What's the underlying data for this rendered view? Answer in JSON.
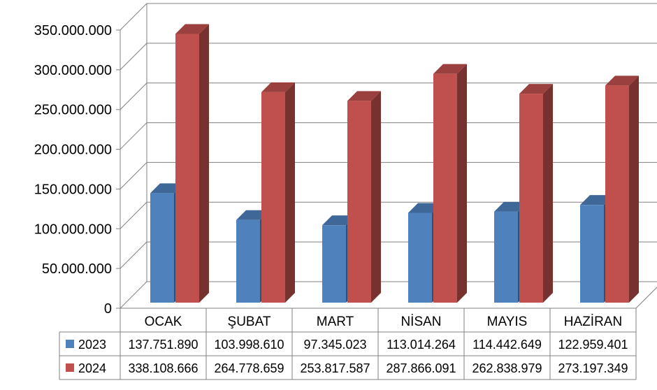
{
  "chart_data": {
    "type": "bar",
    "title": "",
    "xlabel": "",
    "ylabel": "",
    "categories": [
      "OCAK",
      "ŞUBAT",
      "MART",
      "NİSAN",
      "MAYIS",
      "HAZİRAN"
    ],
    "series": [
      {
        "name": "2023",
        "color": "#4F81BD",
        "values": [
          137751890,
          103998610,
          97345023,
          113014264,
          114442649,
          122959401
        ],
        "labels": [
          "137.751.890",
          "103.998.610",
          "97.345.023",
          "113.014.264",
          "114.442.649",
          "122.959.401"
        ]
      },
      {
        "name": "2024",
        "color": "#C0504D",
        "values": [
          338108666,
          264778659,
          253817587,
          287866091,
          262838979,
          273197349
        ],
        "labels": [
          "338.108.666",
          "264.778.659",
          "253.817.587",
          "287.866.091",
          "262.838.979",
          "273.197.349"
        ]
      }
    ],
    "ylim": [
      0,
      350000000
    ],
    "yticks": [
      0,
      50000000,
      100000000,
      150000000,
      200000000,
      250000000,
      300000000,
      350000000
    ],
    "ytick_labels": [
      "0",
      "50.000.000",
      "100.000.000",
      "150.000.000",
      "200.000.000",
      "250.000.000",
      "300.000.000",
      "350.000.000"
    ],
    "grid": true,
    "three_d": true,
    "data_table": true,
    "legend_placement": "data-table"
  }
}
